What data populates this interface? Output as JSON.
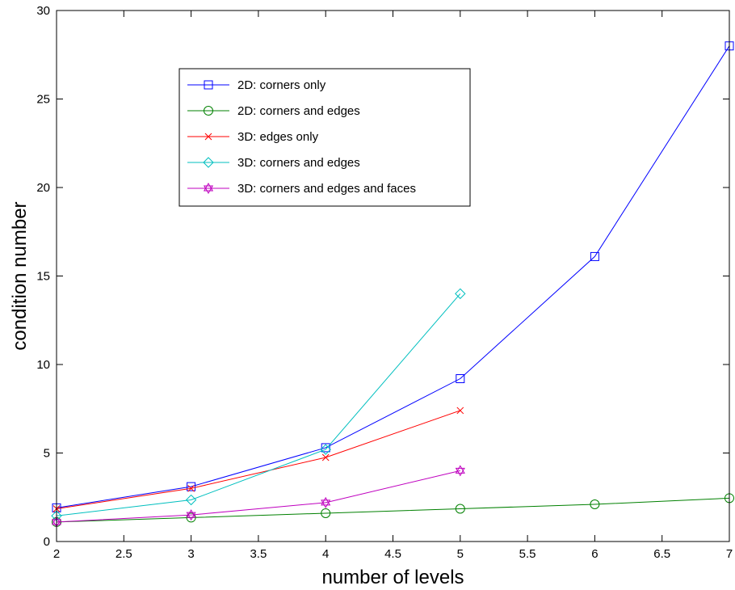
{
  "chart_data": {
    "type": "line",
    "title": "",
    "xlabel": "number of levels",
    "ylabel": "condition number",
    "xlim": [
      2,
      7
    ],
    "ylim": [
      0,
      30
    ],
    "xticks": [
      2,
      2.5,
      3,
      3.5,
      4,
      4.5,
      5,
      5.5,
      6,
      6.5,
      7
    ],
    "xtick_labels": [
      "2",
      "2.5",
      "3",
      "3.5",
      "4",
      "4.5",
      "5",
      "5.5",
      "6",
      "6.5",
      "7"
    ],
    "yticks": [
      0,
      5,
      10,
      15,
      20,
      25,
      30
    ],
    "ytick_labels": [
      "0",
      "5",
      "10",
      "15",
      "20",
      "25",
      "30"
    ],
    "grid": false,
    "legend_position": "upper-left",
    "series": [
      {
        "name": "2D: corners only",
        "color": "#0000ff",
        "marker": "square",
        "x": [
          2,
          3,
          4,
          5,
          6,
          7
        ],
        "y": [
          1.9,
          3.1,
          5.3,
          9.2,
          16.1,
          28.0
        ]
      },
      {
        "name": "2D: corners and edges",
        "color": "#008000",
        "marker": "circle",
        "x": [
          2,
          3,
          4,
          5,
          6,
          7
        ],
        "y": [
          1.1,
          1.35,
          1.6,
          1.85,
          2.1,
          2.45
        ]
      },
      {
        "name": "3D: edges only",
        "color": "#ff0000",
        "marker": "x",
        "x": [
          2,
          3,
          4,
          5
        ],
        "y": [
          1.85,
          3.0,
          4.75,
          7.4
        ]
      },
      {
        "name": "3D: corners and edges",
        "color": "#00bfbf",
        "marker": "diamond",
        "x": [
          2,
          3,
          4,
          5
        ],
        "y": [
          1.45,
          2.35,
          5.2,
          14.0
        ]
      },
      {
        "name": "3D: corners and edges and faces",
        "color": "#bf00bf",
        "marker": "hexagram",
        "x": [
          2,
          3,
          4,
          5
        ],
        "y": [
          1.1,
          1.5,
          2.2,
          4.0
        ]
      }
    ]
  }
}
